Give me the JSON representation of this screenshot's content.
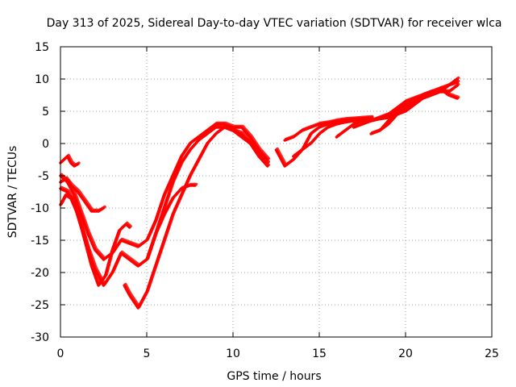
{
  "chart_data": {
    "type": "line",
    "title": "Day 313 of 2025, Sidereal Day-to-day VTEC variation (SDTVAR) for receiver wlca",
    "xlabel": "GPS time / hours",
    "ylabel": "SDTVAR / TECUs",
    "xlim": [
      0,
      25
    ],
    "ylim": [
      -30,
      15
    ],
    "xticks": [
      0,
      5,
      10,
      15,
      20,
      25
    ],
    "yticks": [
      -30,
      -25,
      -20,
      -15,
      -10,
      -5,
      0,
      5,
      10,
      15
    ],
    "grid": true,
    "legend": "none",
    "color": "#ff0000",
    "series": [
      {
        "name": "trace-1",
        "x": [
          0.0,
          0.2,
          0.4,
          0.6,
          0.8,
          1.0
        ],
        "y": [
          -3.0,
          -2.5,
          -2.0,
          -3.0,
          -3.5,
          -3.2
        ]
      },
      {
        "name": "trace-2",
        "x": [
          0.0,
          0.3,
          0.6,
          1.0,
          1.4,
          1.8,
          2.2,
          2.5
        ],
        "y": [
          -6.0,
          -5.5,
          -6.5,
          -7.5,
          -9.0,
          -10.5,
          -10.5,
          -10.0
        ]
      },
      {
        "name": "trace-3",
        "x": [
          0.0,
          0.4,
          0.8,
          1.2,
          1.6,
          2.0,
          2.5,
          3.0,
          3.5,
          4.0,
          4.5,
          5.0,
          5.5,
          6.0,
          6.5,
          7.0,
          7.5,
          8.0,
          8.5,
          9.0,
          9.5,
          10.0,
          10.5,
          11.0,
          11.5,
          12.0
        ],
        "y": [
          -5.0,
          -6.0,
          -8.0,
          -11.0,
          -14.0,
          -16.5,
          -18.0,
          -17.0,
          -15.0,
          -15.5,
          -16.0,
          -15.0,
          -12.0,
          -8.0,
          -5.0,
          -2.0,
          0.0,
          1.0,
          2.0,
          3.0,
          3.0,
          2.5,
          2.5,
          1.0,
          -1.0,
          -2.5
        ]
      },
      {
        "name": "trace-4",
        "x": [
          0.0,
          0.4,
          0.8,
          1.2,
          1.6,
          2.0,
          2.5,
          3.0,
          3.5,
          4.0,
          4.5,
          5.0,
          5.5,
          6.0,
          6.5,
          7.0,
          7.5,
          8.0,
          8.5,
          9.0,
          9.5,
          10.0,
          10.5,
          11.0,
          11.5,
          12.0
        ],
        "y": [
          -7.0,
          -7.5,
          -9.5,
          -13.0,
          -16.5,
          -19.5,
          -22.0,
          -20.0,
          -17.0,
          -18.0,
          -19.0,
          -18.0,
          -14.0,
          -10.0,
          -6.0,
          -3.0,
          -1.0,
          0.5,
          1.5,
          2.5,
          2.5,
          2.0,
          1.5,
          0.0,
          -2.0,
          -3.5
        ]
      },
      {
        "name": "trace-5",
        "x": [
          0.0,
          0.3,
          0.6,
          1.0,
          1.4,
          1.8,
          2.2,
          2.6,
          3.0,
          3.4,
          3.8,
          4.0
        ],
        "y": [
          -9.5,
          -8.0,
          -8.5,
          -11.0,
          -15.0,
          -19.0,
          -22.0,
          -20.5,
          -16.5,
          -13.5,
          -12.5,
          -13.0
        ]
      },
      {
        "name": "trace-6",
        "x": [
          3.7,
          4.0,
          4.5,
          5.0,
          5.5,
          6.0,
          6.5,
          7.0,
          7.5,
          8.0,
          8.5,
          9.0,
          9.5,
          10.0,
          10.5,
          11.0,
          11.5,
          12.0
        ],
        "y": [
          -22.0,
          -23.5,
          -25.5,
          -23.0,
          -19.0,
          -15.0,
          -11.0,
          -8.0,
          -5.0,
          -2.5,
          0.0,
          1.5,
          2.5,
          2.0,
          1.0,
          0.0,
          -1.5,
          -3.0
        ]
      },
      {
        "name": "trace-7",
        "x": [
          5.0,
          5.5,
          6.0,
          6.5,
          7.0,
          7.5,
          7.8
        ],
        "y": [
          -18.0,
          -14.0,
          -11.0,
          -8.5,
          -7.0,
          -6.5,
          -6.5
        ]
      },
      {
        "name": "trace-8",
        "x": [
          12.5,
          13.0,
          13.5,
          14.0,
          14.5,
          15.0,
          15.5,
          16.0,
          16.5,
          17.0,
          17.5,
          18.0
        ],
        "y": [
          -1.0,
          -3.5,
          -2.5,
          -1.0,
          1.5,
          2.5,
          3.0,
          3.0,
          3.3,
          3.5,
          3.6,
          3.8
        ]
      },
      {
        "name": "trace-9",
        "x": [
          13.0,
          13.5,
          14.0,
          14.5,
          15.0,
          15.5,
          16.0,
          16.5,
          17.0,
          17.5,
          18.0
        ],
        "y": [
          0.5,
          1.0,
          2.0,
          2.5,
          3.0,
          3.2,
          3.5,
          3.7,
          3.8,
          3.9,
          4.0
        ]
      },
      {
        "name": "trace-10",
        "x": [
          13.5,
          14.0,
          14.5,
          15.0,
          15.5,
          16.0,
          16.5,
          17.0,
          17.5,
          18.0
        ],
        "y": [
          -2.0,
          -1.0,
          0.0,
          1.5,
          2.5,
          3.0,
          3.5,
          3.5,
          3.7,
          3.8
        ]
      },
      {
        "name": "trace-11",
        "x": [
          16.0,
          16.5,
          17.0,
          17.5,
          18.0,
          18.5,
          19.0,
          19.5,
          20.0,
          20.5,
          21.0,
          21.5,
          22.0,
          22.5,
          23.0
        ],
        "y": [
          1.0,
          2.0,
          3.0,
          3.5,
          3.5,
          3.8,
          4.0,
          5.0,
          6.0,
          6.5,
          7.0,
          7.5,
          8.0,
          8.0,
          9.0
        ]
      },
      {
        "name": "trace-12",
        "x": [
          17.0,
          17.5,
          18.0,
          18.5,
          19.0,
          19.5,
          20.0,
          20.5,
          21.0,
          21.5,
          22.0,
          22.5,
          23.0
        ],
        "y": [
          2.5,
          3.0,
          3.5,
          4.0,
          4.5,
          5.5,
          6.5,
          7.0,
          7.5,
          8.0,
          8.0,
          9.0,
          9.5
        ]
      },
      {
        "name": "trace-13",
        "x": [
          18.0,
          18.5,
          19.0,
          19.5,
          20.0,
          20.5,
          21.0,
          21.5,
          22.0,
          22.5,
          23.0
        ],
        "y": [
          1.5,
          2.0,
          3.0,
          4.5,
          5.5,
          6.5,
          7.5,
          8.0,
          8.5,
          7.5,
          7.0
        ]
      },
      {
        "name": "trace-14",
        "x": [
          18.5,
          19.0,
          19.5,
          20.0,
          20.5,
          21.0,
          21.5,
          22.0,
          22.5,
          23.0
        ],
        "y": [
          2.0,
          3.5,
          4.5,
          5.0,
          6.0,
          7.0,
          7.5,
          8.5,
          9.0,
          10.0
        ]
      }
    ]
  }
}
